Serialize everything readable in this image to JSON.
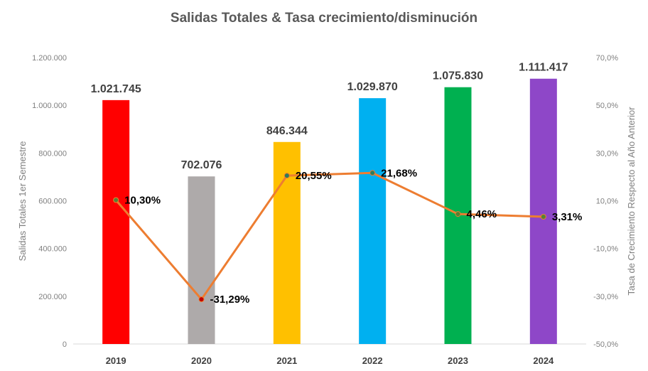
{
  "chart_data": {
    "type": "bar",
    "title": "Salidas Totales & Tasa crecimiento/disminución",
    "categories": [
      "2019",
      "2020",
      "2021",
      "2022",
      "2023",
      "2024"
    ],
    "series": [
      {
        "type": "bar",
        "axis": "left",
        "values": [
          1021745,
          702076,
          846344,
          1029870,
          1075830,
          1111417
        ],
        "labels": [
          "1.021.745",
          "702.076",
          "846.344",
          "1.029.870",
          "1.075.830",
          "1.111.417"
        ],
        "colors": [
          "#ff0000",
          "#aeaaaa",
          "#ffc000",
          "#00b0f0",
          "#00b050",
          "#8e47c8"
        ]
      },
      {
        "type": "line",
        "axis": "right",
        "values": [
          10.3,
          -31.29,
          20.55,
          21.68,
          4.46,
          3.31
        ],
        "labels": [
          "10,30%",
          "-31,29%",
          "20,55%",
          "21,68%",
          "4,46%",
          "3,31%"
        ],
        "color": "#ed7d31",
        "marker_colors": [
          "#548235",
          "#c00000",
          "#2e7d5b",
          "#2e7d5b",
          "#548235",
          "#548235"
        ]
      }
    ],
    "ylabel": "Salidas Totales 1er Semestre",
    "ylim": [
      0,
      1200000
    ],
    "yticks": [
      "0",
      "200.000",
      "400.000",
      "600.000",
      "800.000",
      "1.000.000",
      "1.200.000"
    ],
    "y2label": "Tasa de Crecimiento Respecto al Año Anterior",
    "y2lim": [
      -50,
      70
    ],
    "y2ticks": [
      "-50,0%",
      "-30,0%",
      "-10,0%",
      "10,0%",
      "30,0%",
      "50,0%",
      "70,0%"
    ],
    "grid": false,
    "legend": "none"
  }
}
